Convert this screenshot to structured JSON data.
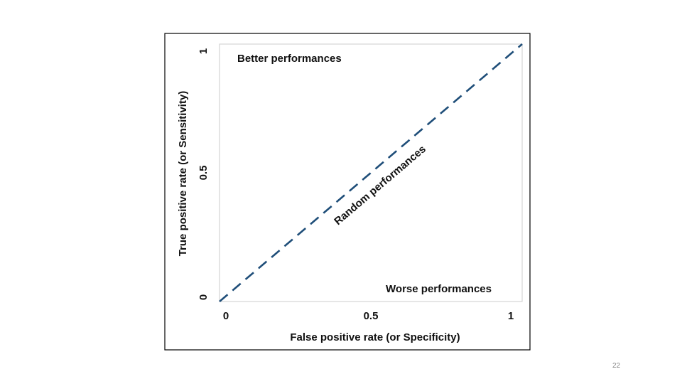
{
  "slide": {
    "number": "22"
  },
  "chart_data": {
    "type": "line",
    "title": "",
    "xlabel": "False positive rate (or Specificity)",
    "ylabel": "True positive rate (or Sensitivity)",
    "xlim": [
      0,
      1
    ],
    "ylim": [
      0,
      1
    ],
    "x_ticks": [
      {
        "value": 0,
        "label": "0"
      },
      {
        "value": 0.5,
        "label": "0.5"
      },
      {
        "value": 1,
        "label": "1"
      }
    ],
    "y_ticks": [
      {
        "value": 0,
        "label": "0"
      },
      {
        "value": 0.5,
        "label": "0.5"
      },
      {
        "value": 1,
        "label": "1"
      }
    ],
    "grid": false,
    "series": [
      {
        "x": [
          0,
          1
        ],
        "y": [
          0,
          1
        ],
        "style": "dashed",
        "color": "#1f4e79"
      }
    ],
    "annotations": [
      {
        "text": "Better performances",
        "region": "top-left"
      },
      {
        "text": "Random performances",
        "region": "along-diagonal"
      },
      {
        "text": "Worse performances",
        "region": "bottom-right"
      }
    ]
  }
}
